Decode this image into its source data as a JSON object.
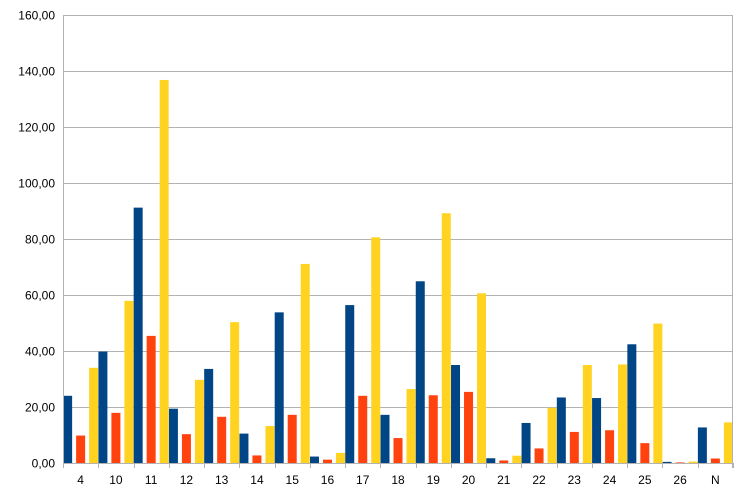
{
  "chart_data": {
    "type": "bar",
    "categories": [
      "4",
      "10",
      "11",
      "12",
      "13",
      "14",
      "15",
      "16",
      "17",
      "18",
      "19",
      "20",
      "21",
      "22",
      "23",
      "24",
      "25",
      "26",
      "N"
    ],
    "series": [
      {
        "color": "#004586",
        "values": [
          24.0,
          39.8,
          91.2,
          19.4,
          33.6,
          10.5,
          53.8,
          2.3,
          56.4,
          17.2,
          64.9,
          35.0,
          1.7,
          14.3,
          23.4,
          23.2,
          42.4,
          0.4,
          12.7
        ]
      },
      {
        "color": "#ff420e",
        "values": [
          9.8,
          17.9,
          45.4,
          10.3,
          16.5,
          2.7,
          17.2,
          1.2,
          24.0,
          8.9,
          24.2,
          25.4,
          0.9,
          5.2,
          11.1,
          11.7,
          7.1,
          0.2,
          1.6
        ]
      },
      {
        "color": "#ffd320",
        "values": [
          34.0,
          57.9,
          136.8,
          29.7,
          50.3,
          13.2,
          71.1,
          3.6,
          80.6,
          26.4,
          89.2,
          60.6,
          2.6,
          19.7,
          35.0,
          35.2,
          49.8,
          0.5,
          14.5
        ]
      }
    ],
    "y_ticks": [
      "0,00",
      "20,00",
      "40,00",
      "60,00",
      "80,00",
      "100,00",
      "120,00",
      "140,00",
      "160,00"
    ],
    "ylim": [
      0,
      160
    ],
    "grid": true,
    "legend": "none",
    "title": "",
    "xlabel": "",
    "ylabel": ""
  }
}
